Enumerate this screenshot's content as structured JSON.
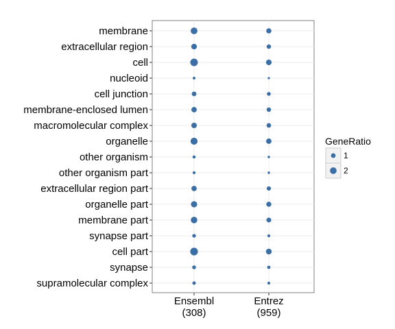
{
  "chart_data": {
    "type": "scatter",
    "title": "",
    "xlabel": "",
    "ylabel": "",
    "x_categories": [
      {
        "name": "Ensembl",
        "count": "(308)"
      },
      {
        "name": "Entrez",
        "count": "(959)"
      }
    ],
    "y_categories": [
      "membrane",
      "extracellular region",
      "cell",
      "nucleoid",
      "cell junction",
      "membrane-enclosed lumen",
      "macromolecular complex",
      "organelle",
      "other organism",
      "other organism part",
      "extracellular region part",
      "organelle part",
      "membrane part",
      "synapse part",
      "cell part",
      "synapse",
      "supramolecular complex"
    ],
    "size_variable": "GeneRatio",
    "values": {
      "Ensembl": [
        1.85,
        1.3,
        2.35,
        0.3,
        0.9,
        1.2,
        1.25,
        2.0,
        0.4,
        0.35,
        1.15,
        1.6,
        1.7,
        0.55,
        2.4,
        0.6,
        0.5
      ],
      "Entrez": [
        1.1,
        0.8,
        1.3,
        0.2,
        0.6,
        0.8,
        0.85,
        1.2,
        0.25,
        0.25,
        0.75,
        1.05,
        0.95,
        0.35,
        1.35,
        0.45,
        0.35
      ]
    },
    "point_color": "#3a6ea5",
    "grid": true,
    "legend": {
      "title": "GeneRatio",
      "position": "right",
      "entries": [
        {
          "label": "1",
          "value": 1
        },
        {
          "label": "2",
          "value": 2
        }
      ]
    }
  }
}
